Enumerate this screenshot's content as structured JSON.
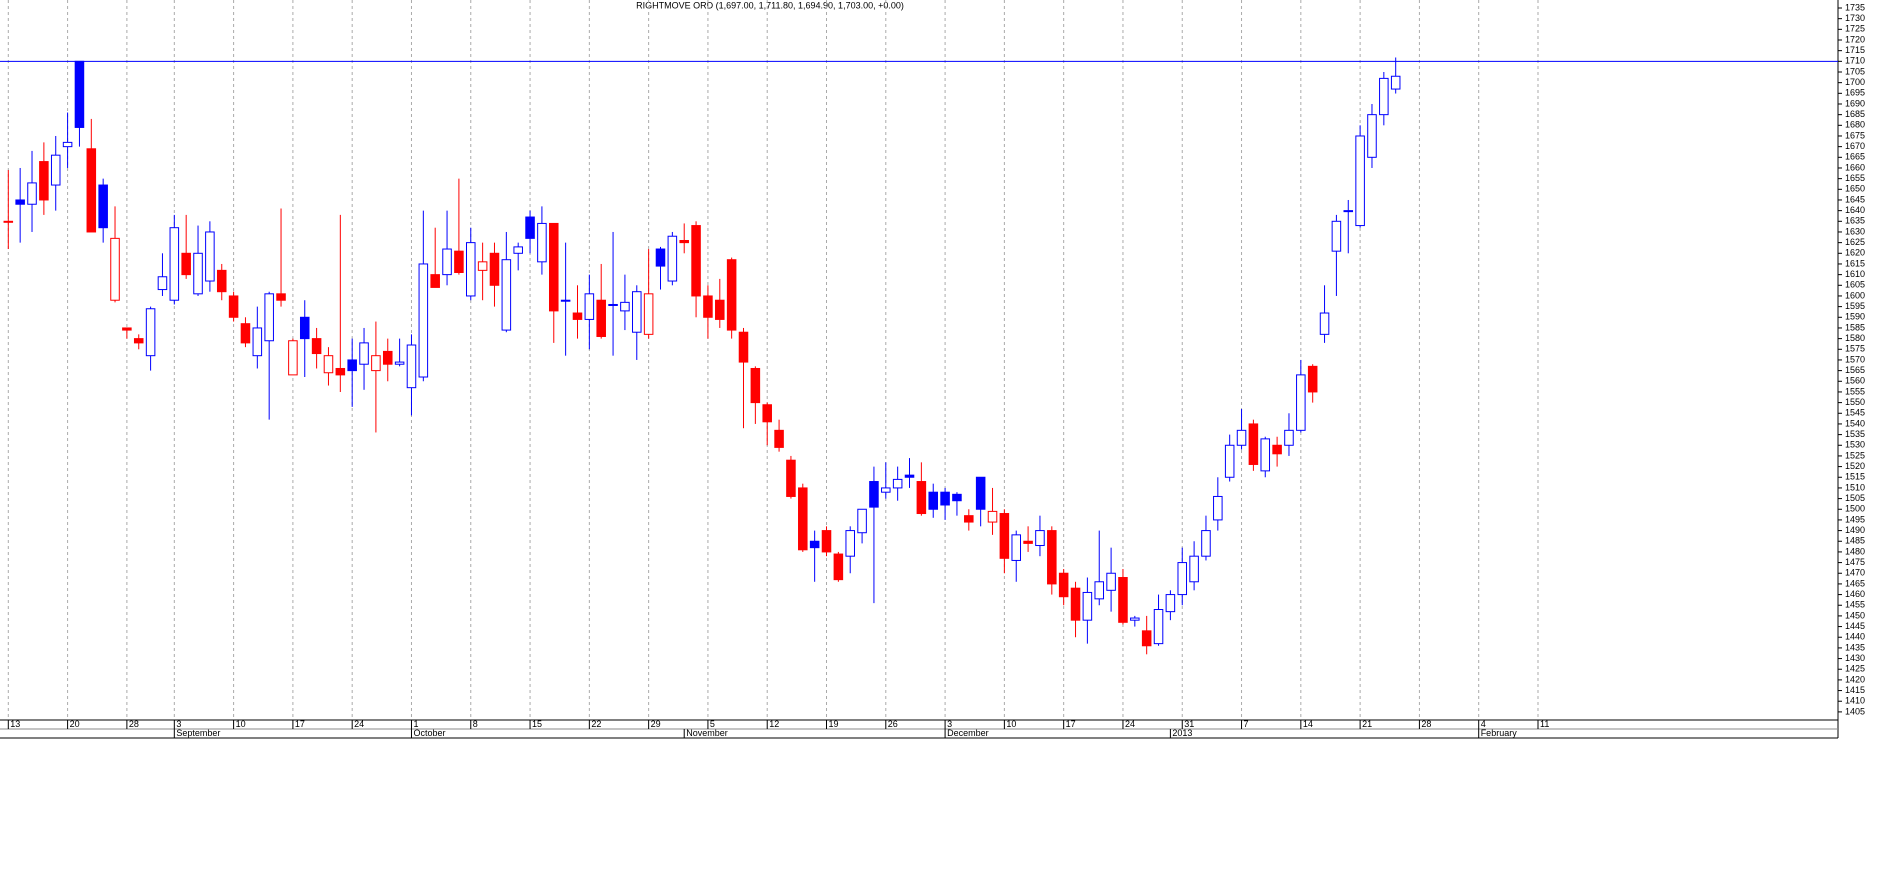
{
  "chart_data": {
    "type": "candlestick",
    "title": "RIGHTMOVE ORD (1,697.00, 1,711.80, 1,694.90, 1,703.00, +0.00)",
    "up_color": "#0000ff",
    "down_color": "#ff0000",
    "hline": 1710,
    "hline_color": "#0000ff",
    "grid": true,
    "open": [
      1635,
      1645,
      1643,
      1663,
      1652,
      1670,
      1710,
      1669,
      1652,
      1598,
      1585,
      1580,
      1572,
      1603,
      1598,
      1620,
      1601,
      1607,
      1612,
      1600,
      1587,
      1572,
      1579,
      1601,
      1563,
      1590,
      1580,
      1564,
      1566,
      1570,
      1568,
      1565,
      1574,
      1568,
      1557,
      1562,
      1610,
      1610,
      1621,
      1600,
      1612,
      1620,
      1584,
      1620,
      1637,
      1616,
      1634,
      1598,
      1592,
      1589,
      1598,
      1596,
      1593,
      1583,
      1582,
      1622,
      1607,
      1626,
      1633,
      1600,
      1598,
      1617,
      1583,
      1566,
      1549,
      1537,
      1523,
      1510,
      1485,
      1490,
      1479,
      1478,
      1489,
      1513,
      1508,
      1510,
      1516,
      1513,
      1508,
      1508,
      1507,
      1497,
      1515,
      1494,
      1498,
      1476,
      1485,
      1483,
      1490,
      1470,
      1463,
      1448,
      1458,
      1462,
      1468,
      1448,
      1443,
      1437,
      1452,
      1460,
      1466,
      1478,
      1495,
      1515,
      1530,
      1540,
      1518,
      1530,
      1530,
      1537,
      1567,
      1582,
      1621,
      1640,
      1633,
      1665,
      1685,
      1697
    ],
    "high": [
      1659,
      1660,
      1668,
      1672,
      1675,
      1686,
      1710,
      1683,
      1655,
      1642,
      1585,
      1582,
      1595,
      1620,
      1638,
      1638,
      1633,
      1635,
      1615,
      1602,
      1590,
      1595,
      1602,
      1641,
      1580,
      1598,
      1585,
      1576,
      1638,
      1580,
      1585,
      1588,
      1580,
      1580,
      1582,
      1640,
      1632,
      1640,
      1655,
      1632,
      1625,
      1625,
      1630,
      1625,
      1640,
      1642,
      1634,
      1625,
      1605,
      1610,
      1615,
      1630,
      1610,
      1605,
      1622,
      1623,
      1630,
      1634,
      1635,
      1605,
      1608,
      1618,
      1585,
      1567,
      1550,
      1542,
      1525,
      1512,
      1490,
      1492,
      1480,
      1492,
      1500,
      1520,
      1522,
      1520,
      1524,
      1522,
      1512,
      1510,
      1508,
      1500,
      1515,
      1510,
      1500,
      1490,
      1492,
      1497,
      1492,
      1472,
      1466,
      1468,
      1490,
      1482,
      1472,
      1450,
      1450,
      1460,
      1462,
      1482,
      1485,
      1497,
      1515,
      1535,
      1547,
      1542,
      1534,
      1534,
      1545,
      1570,
      1568,
      1605,
      1638,
      1645,
      1680,
      1690,
      1705,
      1711.8
    ],
    "low": [
      1622,
      1625,
      1630,
      1638,
      1640,
      1660,
      1670,
      1630,
      1625,
      1597,
      1580,
      1575,
      1565,
      1600,
      1596,
      1608,
      1600,
      1602,
      1598,
      1588,
      1576,
      1566,
      1542,
      1595,
      1563,
      1562,
      1566,
      1558,
      1555,
      1548,
      1556,
      1536,
      1560,
      1567,
      1544,
      1560,
      1604,
      1605,
      1610,
      1598,
      1598,
      1595,
      1583,
      1612,
      1620,
      1610,
      1578,
      1572,
      1580,
      1575,
      1580,
      1572,
      1584,
      1570,
      1580,
      1603,
      1605,
      1620,
      1590,
      1580,
      1585,
      1580,
      1538,
      1540,
      1530,
      1527,
      1505,
      1480,
      1466,
      1478,
      1466,
      1470,
      1484,
      1456,
      1505,
      1504,
      1510,
      1497,
      1496,
      1495,
      1497,
      1490,
      1492,
      1488,
      1470,
      1466,
      1480,
      1478,
      1460,
      1455,
      1440,
      1437,
      1455,
      1452,
      1446,
      1445,
      1432,
      1436,
      1448,
      1455,
      1462,
      1476,
      1490,
      1513,
      1528,
      1518,
      1515,
      1520,
      1525,
      1536,
      1550,
      1578,
      1600,
      1620,
      1632,
      1660,
      1680,
      1694.9
    ],
    "close": [
      1635,
      1643,
      1653,
      1645,
      1666,
      1672,
      1679,
      1630,
      1632,
      1627,
      1584,
      1578,
      1594,
      1609,
      1632,
      1610,
      1620,
      1630,
      1602,
      1590,
      1578,
      1585,
      1601,
      1598,
      1579,
      1580,
      1573,
      1572,
      1563,
      1565,
      1578,
      1572,
      1568,
      1569,
      1577,
      1615,
      1604,
      1622,
      1611,
      1625,
      1616,
      1605,
      1617,
      1623,
      1627,
      1634,
      1593,
      1598,
      1589,
      1601,
      1581,
      1596,
      1597,
      1602,
      1601,
      1614,
      1628,
      1625,
      1600,
      1590,
      1589,
      1584,
      1569,
      1550,
      1541,
      1529,
      1506,
      1481,
      1482,
      1480,
      1467,
      1490,
      1500,
      1501,
      1510,
      1514,
      1515,
      1498,
      1500,
      1502,
      1504,
      1494,
      1500,
      1499,
      1477,
      1488,
      1484,
      1490,
      1465,
      1459,
      1448,
      1461,
      1466,
      1470,
      1447,
      1449,
      1436,
      1453,
      1460,
      1475,
      1478,
      1490,
      1506,
      1530,
      1537,
      1521,
      1533,
      1526,
      1537,
      1563,
      1555,
      1592,
      1635,
      1640,
      1675,
      1685,
      1702,
      1703
    ],
    "ylim": [
      1401.2,
      1738.75
    ],
    "yticks": [
      1405,
      1410,
      1415,
      1420,
      1425,
      1430,
      1435,
      1440,
      1445,
      1450,
      1455,
      1460,
      1465,
      1470,
      1475,
      1480,
      1485,
      1490,
      1495,
      1500,
      1505,
      1510,
      1515,
      1520,
      1525,
      1530,
      1535,
      1540,
      1545,
      1550,
      1555,
      1560,
      1565,
      1570,
      1575,
      1580,
      1585,
      1590,
      1595,
      1600,
      1605,
      1610,
      1615,
      1620,
      1625,
      1630,
      1635,
      1640,
      1645,
      1650,
      1655,
      1660,
      1665,
      1670,
      1675,
      1680,
      1685,
      1690,
      1695,
      1700,
      1705,
      1710,
      1715,
      1720,
      1725,
      1730,
      1735
    ],
    "xlim": [
      -0.7,
      154.3
    ],
    "xticks": [
      {
        "value": 0,
        "label": "13"
      },
      {
        "value": 5,
        "label": "20"
      },
      {
        "value": 10,
        "label": "28"
      },
      {
        "value": 14,
        "label": "3"
      },
      {
        "value": 19,
        "label": "10"
      },
      {
        "value": 24,
        "label": "17"
      },
      {
        "value": 29,
        "label": "24"
      },
      {
        "value": 34,
        "label": "1"
      },
      {
        "value": 39,
        "label": "8"
      },
      {
        "value": 44,
        "label": "15"
      },
      {
        "value": 49,
        "label": "22"
      },
      {
        "value": 54,
        "label": "29"
      },
      {
        "value": 59,
        "label": "5"
      },
      {
        "value": 64,
        "label": "12"
      },
      {
        "value": 69,
        "label": "19"
      },
      {
        "value": 74,
        "label": "26"
      },
      {
        "value": 79,
        "label": "3"
      },
      {
        "value": 84,
        "label": "10"
      },
      {
        "value": 89,
        "label": "17"
      },
      {
        "value": 94,
        "label": "24"
      },
      {
        "value": 99,
        "label": "31"
      },
      {
        "value": 104,
        "label": "7"
      },
      {
        "value": 109,
        "label": "14"
      },
      {
        "value": 114,
        "label": "21"
      },
      {
        "value": 119,
        "label": "28"
      },
      {
        "value": 124,
        "label": "4"
      },
      {
        "value": 129,
        "label": "11"
      }
    ],
    "months": [
      {
        "value": 14,
        "label": "September"
      },
      {
        "value": 34,
        "label": "October"
      },
      {
        "value": 57,
        "label": "November"
      },
      {
        "value": 79,
        "label": "December"
      },
      {
        "value": 98,
        "label": "2013"
      },
      {
        "value": 124,
        "label": "February"
      }
    ]
  }
}
